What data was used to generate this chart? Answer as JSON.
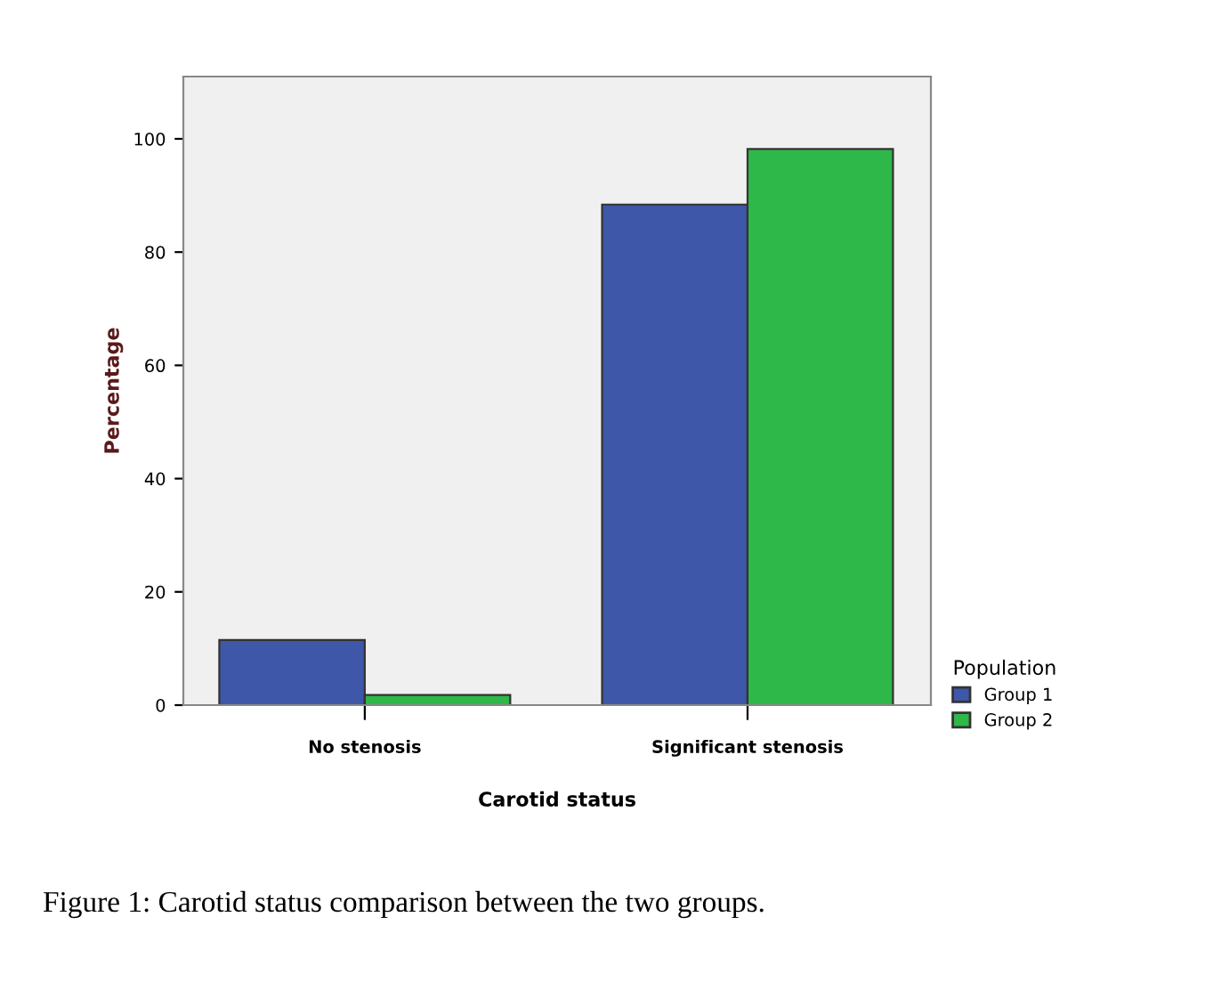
{
  "chart_data": {
    "type": "bar",
    "xlabel": "Carotid status",
    "ylabel": "Percentage",
    "legend_title": "Population",
    "categories": [
      "No stenosis",
      "Significant stenosis"
    ],
    "series": [
      {
        "name": "Group 1",
        "color": "#3f57a8",
        "values": [
          11.5,
          88.4
        ]
      },
      {
        "name": "Group 2",
        "color": "#2fb84a",
        "values": [
          1.8,
          98.2
        ]
      }
    ],
    "ylim": [
      0,
      111
    ],
    "yticks": [
      0,
      20,
      40,
      60,
      80,
      100
    ],
    "grid": false,
    "legend": "bottom right",
    "annotations": [
      "Figure 1: Carotid status comparison between the two groups."
    ]
  }
}
